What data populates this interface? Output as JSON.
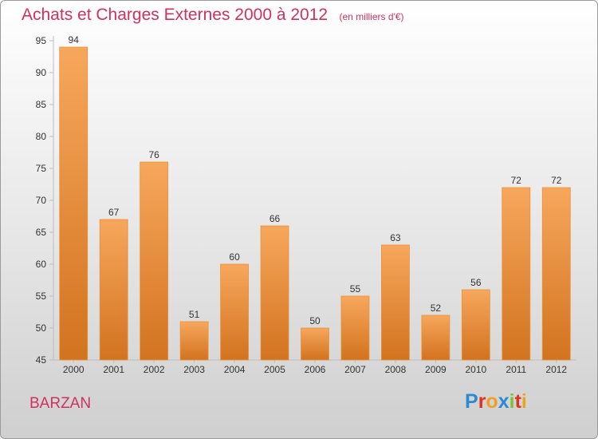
{
  "header": {
    "title": "Achats et Charges Externes 2000 à 2012",
    "unit": "(en milliers d'€)"
  },
  "footer": {
    "commune": "BARZAN",
    "logo_letters": [
      "P",
      "r",
      "o",
      "x",
      "i",
      "t",
      "i"
    ],
    "logo_colors": [
      "#2b8ad6",
      "#e0321e",
      "#f0a020",
      "#2b8ad6",
      "#7ac23a",
      "#e0321e",
      "#f0a020"
    ]
  },
  "chart_data": {
    "type": "bar",
    "title": "Achats et Charges Externes 2000 à 2012",
    "subtitle": "(en milliers d'€)",
    "xlabel": "",
    "ylabel": "",
    "categories": [
      "2000",
      "2001",
      "2002",
      "2003",
      "2004",
      "2005",
      "2006",
      "2007",
      "2008",
      "2009",
      "2010",
      "2011",
      "2012"
    ],
    "values": [
      94,
      67,
      76,
      51,
      60,
      66,
      50,
      55,
      63,
      52,
      56,
      72,
      72
    ],
    "ylim": [
      45,
      95
    ],
    "yticks": [
      45,
      50,
      55,
      60,
      65,
      70,
      75,
      80,
      85,
      90,
      95
    ],
    "grid": false,
    "legend": "none",
    "colors": {
      "bar_light": "#f7a75c",
      "bar_dark": "#d2731f",
      "bar_edge": "#e8923c",
      "axis": "#bcbcbc",
      "tick_text": "#333333",
      "label_text": "#333333",
      "title": "#d2305d"
    }
  }
}
